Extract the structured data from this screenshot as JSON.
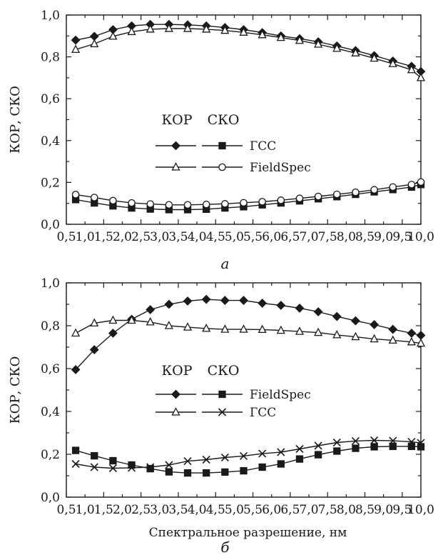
{
  "chart_data": [
    {
      "type": "line",
      "panel_label": "а",
      "ylabel": "КОР, СКО",
      "xlabel": "",
      "xlim": [
        0.5,
        10.0
      ],
      "ylim": [
        0.0,
        1.0
      ],
      "x_ticks": [
        "0,5",
        "1,0",
        "1,5",
        "2,0",
        "2,5",
        "3,0",
        "3,5",
        "4,0",
        "4,5",
        "5,0",
        "5,5",
        "6,0",
        "6,5",
        "7,0",
        "7,5",
        "8,0",
        "8,5",
        "9,0",
        "9,5",
        "10,0"
      ],
      "y_ticks": [
        "0,0",
        "0,2",
        "0,4",
        "0,6",
        "0,8",
        "1,0"
      ],
      "legend": {
        "col_headers": [
          "КОР",
          "СКО"
        ],
        "row_labels": [
          "ГСС",
          "FieldSpec"
        ]
      },
      "x": [
        0.75,
        1.25,
        1.75,
        2.25,
        2.75,
        3.25,
        3.75,
        4.25,
        4.75,
        5.25,
        5.75,
        6.25,
        6.75,
        7.25,
        7.75,
        8.25,
        8.75,
        9.25,
        9.75,
        10.0
      ],
      "series": [
        {
          "metric": "КОР",
          "instrument": "ГСС",
          "marker": "diamond-filled",
          "values": [
            0.88,
            0.898,
            0.93,
            0.948,
            0.955,
            0.955,
            0.953,
            0.948,
            0.94,
            0.93,
            0.916,
            0.9,
            0.887,
            0.872,
            0.852,
            0.83,
            0.806,
            0.78,
            0.755,
            0.73
          ]
        },
        {
          "metric": "КОР",
          "instrument": "FieldSpec",
          "marker": "triangle-open",
          "values": [
            0.835,
            0.862,
            0.898,
            0.92,
            0.932,
            0.935,
            0.935,
            0.932,
            0.926,
            0.917,
            0.905,
            0.892,
            0.878,
            0.86,
            0.84,
            0.818,
            0.793,
            0.767,
            0.738,
            0.7
          ]
        },
        {
          "metric": "СКО",
          "instrument": "ГСС",
          "marker": "square-filled",
          "values": [
            0.118,
            0.102,
            0.088,
            0.078,
            0.073,
            0.07,
            0.07,
            0.072,
            0.078,
            0.084,
            0.093,
            0.102,
            0.112,
            0.122,
            0.132,
            0.143,
            0.155,
            0.166,
            0.178,
            0.19
          ]
        },
        {
          "metric": "СКО",
          "instrument": "FieldSpec",
          "marker": "circle-open",
          "values": [
            0.142,
            0.128,
            0.113,
            0.102,
            0.097,
            0.093,
            0.093,
            0.095,
            0.098,
            0.103,
            0.108,
            0.115,
            0.124,
            0.133,
            0.143,
            0.153,
            0.165,
            0.178,
            0.19,
            0.202
          ]
        }
      ]
    },
    {
      "type": "line",
      "panel_label": "б",
      "ylabel": "КОР, СКО",
      "xlabel": "Спектральное разрешение, нм",
      "xlim": [
        0.5,
        10.0
      ],
      "ylim": [
        0.0,
        1.0
      ],
      "x_ticks": [
        "0,5",
        "1,0",
        "1,5",
        "2,0",
        "2,5",
        "3,0",
        "3,5",
        "4,0",
        "4,5",
        "5,0",
        "5,5",
        "6,0",
        "6,5",
        "7,0",
        "7,5",
        "8,0",
        "8,5",
        "9,0",
        "9,5",
        "10,0"
      ],
      "y_ticks": [
        "0,0",
        "0,2",
        "0,4",
        "0,6",
        "0,8",
        "1,0"
      ],
      "legend": {
        "col_headers": [
          "КОР",
          "СКО"
        ],
        "row_labels": [
          "FieldSpec",
          "ГСС"
        ]
      },
      "x": [
        0.75,
        1.25,
        1.75,
        2.25,
        2.75,
        3.25,
        3.75,
        4.25,
        4.75,
        5.25,
        5.75,
        6.25,
        6.75,
        7.25,
        7.75,
        8.25,
        8.75,
        9.25,
        9.75,
        10.0
      ],
      "series": [
        {
          "metric": "КОР",
          "instrument": "FieldSpec",
          "marker": "diamond-filled",
          "values": [
            0.595,
            0.688,
            0.765,
            0.83,
            0.875,
            0.9,
            0.915,
            0.923,
            0.918,
            0.918,
            0.905,
            0.895,
            0.882,
            0.865,
            0.843,
            0.823,
            0.805,
            0.783,
            0.765,
            0.755
          ]
        },
        {
          "metric": "КОР",
          "instrument": "ГСС",
          "marker": "triangle-open",
          "values": [
            0.765,
            0.812,
            0.825,
            0.825,
            0.817,
            0.8,
            0.793,
            0.787,
            0.783,
            0.783,
            0.782,
            0.778,
            0.773,
            0.768,
            0.757,
            0.748,
            0.738,
            0.732,
            0.724,
            0.718
          ]
        },
        {
          "metric": "СКО",
          "instrument": "FieldSpec",
          "marker": "square-filled",
          "values": [
            0.218,
            0.193,
            0.17,
            0.15,
            0.133,
            0.118,
            0.113,
            0.113,
            0.117,
            0.123,
            0.14,
            0.155,
            0.178,
            0.198,
            0.215,
            0.228,
            0.235,
            0.237,
            0.237,
            0.235
          ]
        },
        {
          "metric": "СКО",
          "instrument": "ГСС",
          "marker": "cross",
          "values": [
            0.155,
            0.14,
            0.135,
            0.137,
            0.14,
            0.15,
            0.168,
            0.175,
            0.185,
            0.192,
            0.203,
            0.21,
            0.225,
            0.24,
            0.255,
            0.262,
            0.265,
            0.263,
            0.258,
            0.253
          ]
        }
      ]
    }
  ]
}
